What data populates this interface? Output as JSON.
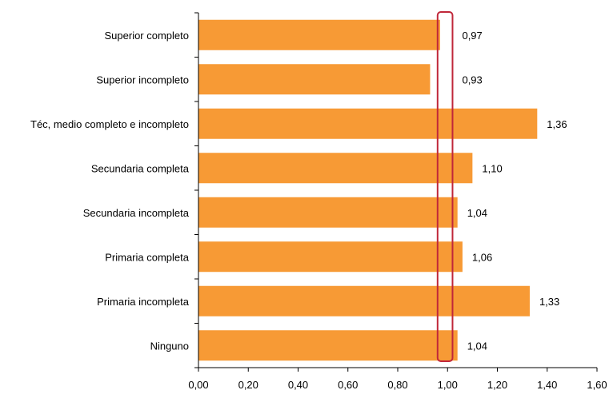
{
  "chart_data": {
    "type": "bar",
    "orientation": "horizontal",
    "categories": [
      "Superior completo",
      "Superior incompleto",
      "Téc, medio completo e incompleto",
      "Secundaria completa",
      "Secundaria incompleta",
      "Primaria completa",
      "Primaria incompleta",
      "Ninguno"
    ],
    "values": [
      0.97,
      0.93,
      1.36,
      1.1,
      1.04,
      1.06,
      1.33,
      1.04
    ],
    "value_labels": [
      "0,97",
      "0,93",
      "1,36",
      "1,10",
      "1,04",
      "1,06",
      "1,33",
      "1,04"
    ],
    "xlim": [
      0,
      1.6
    ],
    "xticks": [
      0,
      0.2,
      0.4,
      0.6,
      0.8,
      1.0,
      1.2,
      1.4,
      1.6
    ],
    "xtick_labels": [
      "0,00",
      "0,20",
      "0,40",
      "0,60",
      "0,80",
      "1,00",
      "1,20",
      "1,40",
      "1,60"
    ],
    "reference_bracket": {
      "x_from": 0.96,
      "x_to": 1.02,
      "color": "#c0273a"
    },
    "bar_color": "#f79a35",
    "grid": false,
    "title": "",
    "xlabel": "",
    "ylabel": ""
  }
}
